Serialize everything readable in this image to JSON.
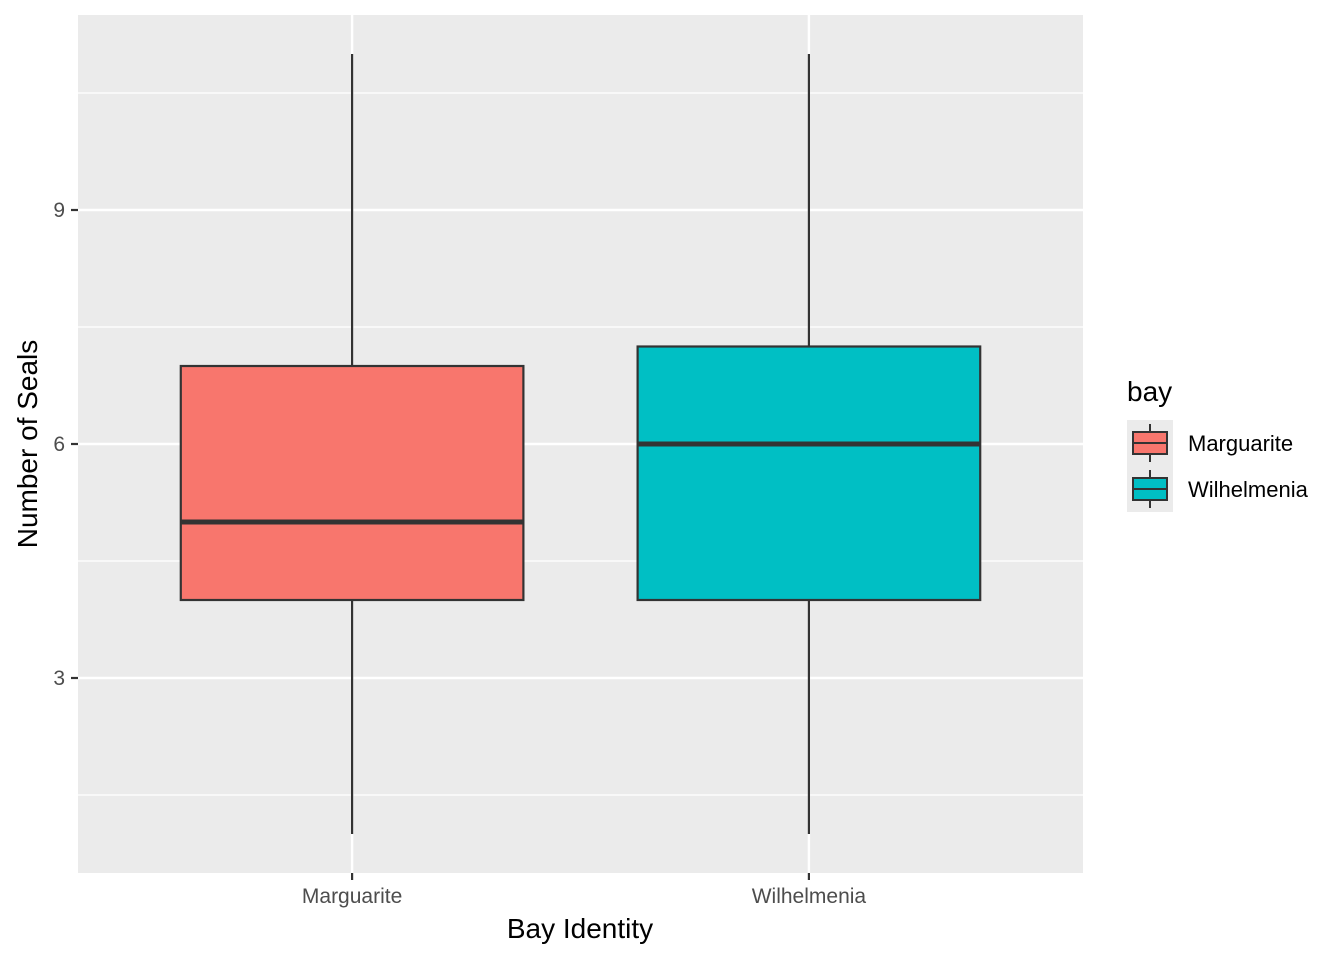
{
  "chart_data": {
    "type": "boxplot",
    "xlabel": "Bay Identity",
    "ylabel": "Number of Seals",
    "categories": [
      "Marguarite",
      "Wilhelmenia"
    ],
    "boxes": [
      {
        "category": "Marguarite",
        "min": 1,
        "q1": 4,
        "median": 5,
        "q3": 7,
        "max": 11,
        "fill": "#F8766D"
      },
      {
        "category": "Wilhelmenia",
        "min": 1,
        "q1": 4,
        "median": 6,
        "q3": 7.25,
        "max": 11,
        "fill": "#00BFC4"
      }
    ],
    "ylim": [
      0.5,
      11.5
    ],
    "y_ticks": [
      3,
      6,
      9
    ],
    "y_minor": [
      1.5,
      4.5,
      7.5,
      10.5
    ],
    "grid": true,
    "panel_background": "#EBEBEB",
    "legend": {
      "title": "bay",
      "placement": "right",
      "entries": [
        {
          "label": "Marguarite",
          "fill": "#F8766D"
        },
        {
          "label": "Wilhelmenia",
          "fill": "#00BFC4"
        }
      ]
    }
  }
}
